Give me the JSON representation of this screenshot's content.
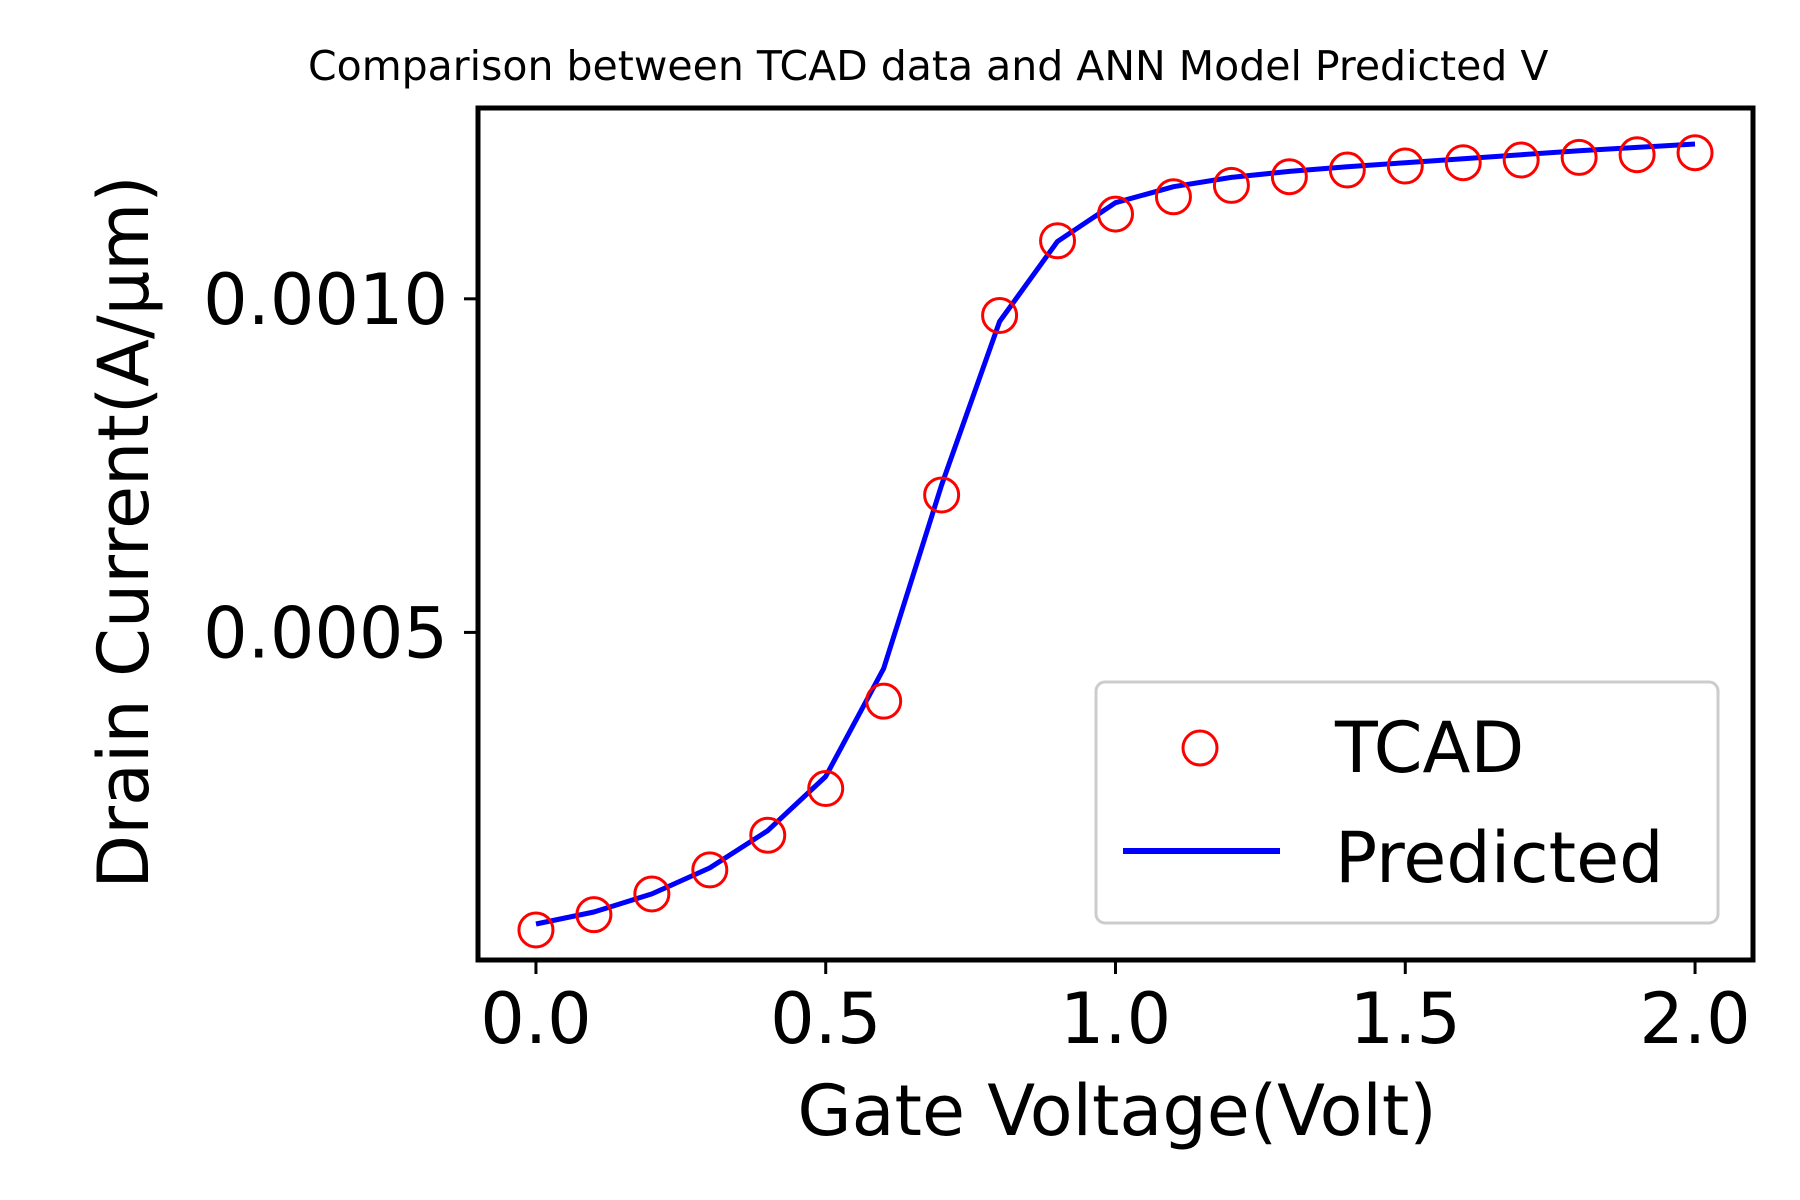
{
  "chart_data": {
    "type": "line",
    "title": "Comparison between TCAD data and ANN Model Predicted V",
    "xlabel": "Gate Voltage(Volt)",
    "ylabel": "Drain Current(A/μm)",
    "xlim": [
      -0.1,
      2.1
    ],
    "ylim": [
      9e-06,
      0.001286
    ],
    "x_ticks": [
      0.0,
      0.5,
      1.0,
      1.5,
      2.0
    ],
    "x_tick_labels": [
      "0.0",
      "0.5",
      "1.0",
      "1.5",
      "2.0"
    ],
    "y_ticks": [
      0.0005,
      0.001
    ],
    "y_tick_labels": [
      "0.0005",
      "0.0010"
    ],
    "grid": false,
    "legend_position": "lower-right",
    "x": [
      0.0,
      0.1,
      0.2,
      0.3,
      0.4,
      0.5,
      0.6,
      0.7,
      0.8,
      0.9,
      1.0,
      1.1,
      1.2,
      1.3,
      1.4,
      1.5,
      1.6,
      1.7,
      1.8,
      1.9,
      2.0
    ],
    "series": [
      {
        "name": "TCAD",
        "style": "markers",
        "marker": "open-circle",
        "color": "#ff0000",
        "values": [
          5.4e-05,
          7.7e-05,
          0.000108,
          0.000144,
          0.000196,
          0.000266,
          0.000397,
          0.000706,
          0.000975,
          0.001087,
          0.001127,
          0.001153,
          0.00117,
          0.001183,
          0.001193,
          0.001199,
          0.001204,
          0.001208,
          0.001212,
          0.001216,
          0.001219
        ]
      },
      {
        "name": "Predicted",
        "style": "line",
        "color": "#0000ff",
        "values": [
          6.3e-05,
          8.1e-05,
          0.000108,
          0.000147,
          0.000203,
          0.000284,
          0.000446,
          0.000721,
          0.000966,
          0.001086,
          0.001144,
          0.001168,
          0.001182,
          0.001191,
          0.001198,
          0.001204,
          0.00121,
          0.001216,
          0.001222,
          0.001227,
          0.001232
        ]
      }
    ]
  }
}
